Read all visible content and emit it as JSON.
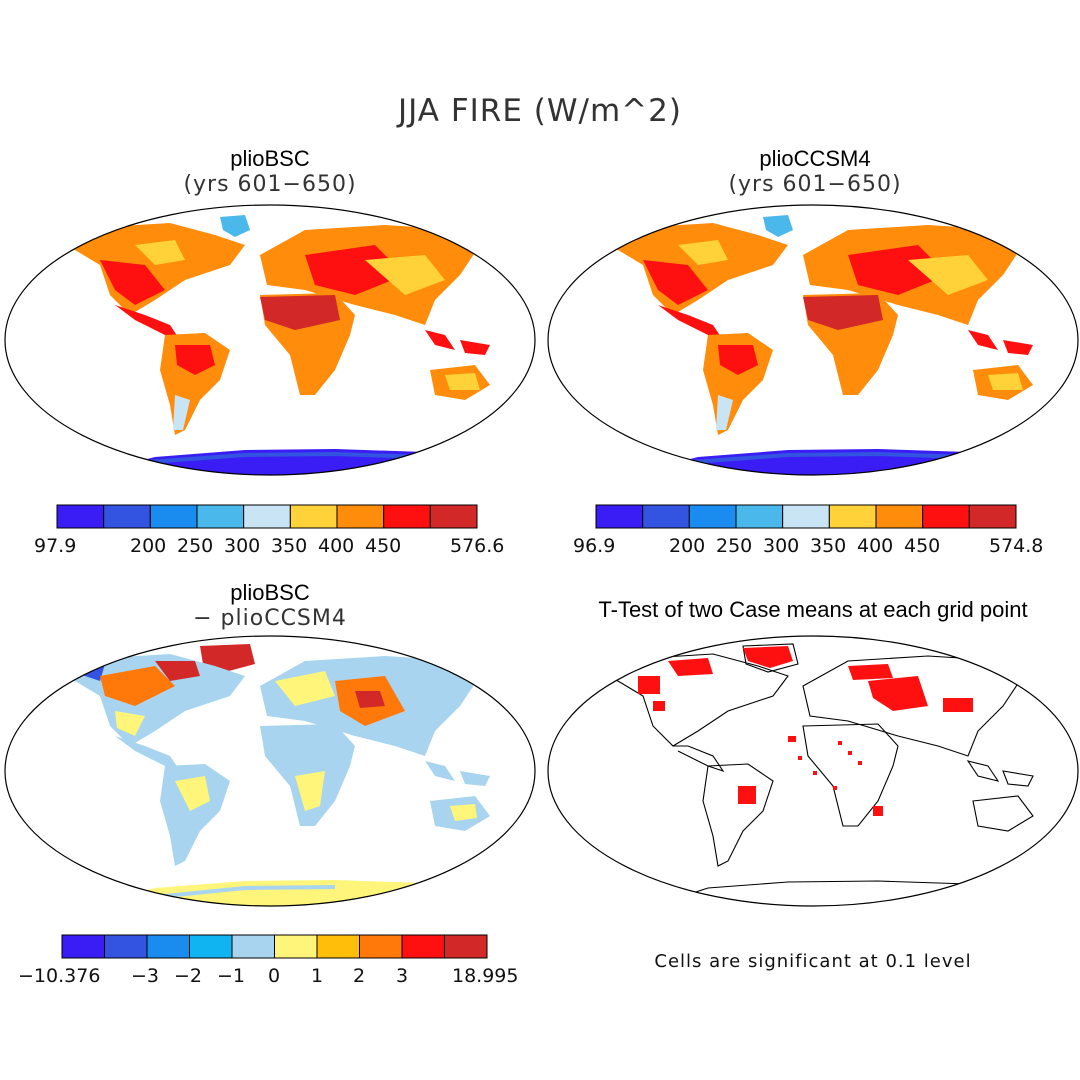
{
  "title": "JJA FIRE (W/m^2)",
  "panels": [
    {
      "title": "plioBSC",
      "subtitle": "(yrs 601−650)",
      "colorbar": {
        "colors": [
          "#3a1cf5",
          "#3354e0",
          "#1a8cf0",
          "#4bb8ec",
          "#c8e4f5",
          "#ffd23a",
          "#ff8c0a",
          "#ff1010",
          "#d22828"
        ],
        "tick_labels": [
          "97.9",
          "200",
          "250",
          "300",
          "350",
          "400",
          "450",
          "576.6"
        ]
      }
    },
    {
      "title": "plioCCSM4",
      "subtitle": "(yrs 601−650)",
      "colorbar": {
        "colors": [
          "#3a1cf5",
          "#3354e0",
          "#1a8cf0",
          "#4bb8ec",
          "#c8e4f5",
          "#ffd23a",
          "#ff8c0a",
          "#ff1010",
          "#d22828"
        ],
        "tick_labels": [
          "96.9",
          "200",
          "250",
          "300",
          "350",
          "400",
          "450",
          "574.8"
        ]
      }
    },
    {
      "title": "plioBSC",
      "subtitle": "− plioCCSM4",
      "colorbar": {
        "colors": [
          "#3a1cf5",
          "#3354e0",
          "#1a8cf0",
          "#10b4f0",
          "#a8d4f0",
          "#fff57a",
          "#ffbe0a",
          "#ff780a",
          "#ff1010",
          "#d22828"
        ],
        "tick_labels": [
          "−10.376",
          "−3",
          "−2",
          "−1",
          "0",
          "1",
          "2",
          "3",
          "18.995"
        ]
      }
    },
    {
      "title": "T-Test of two Case means at each grid point",
      "note": "Cells are significant at 0.1 level"
    }
  ]
}
